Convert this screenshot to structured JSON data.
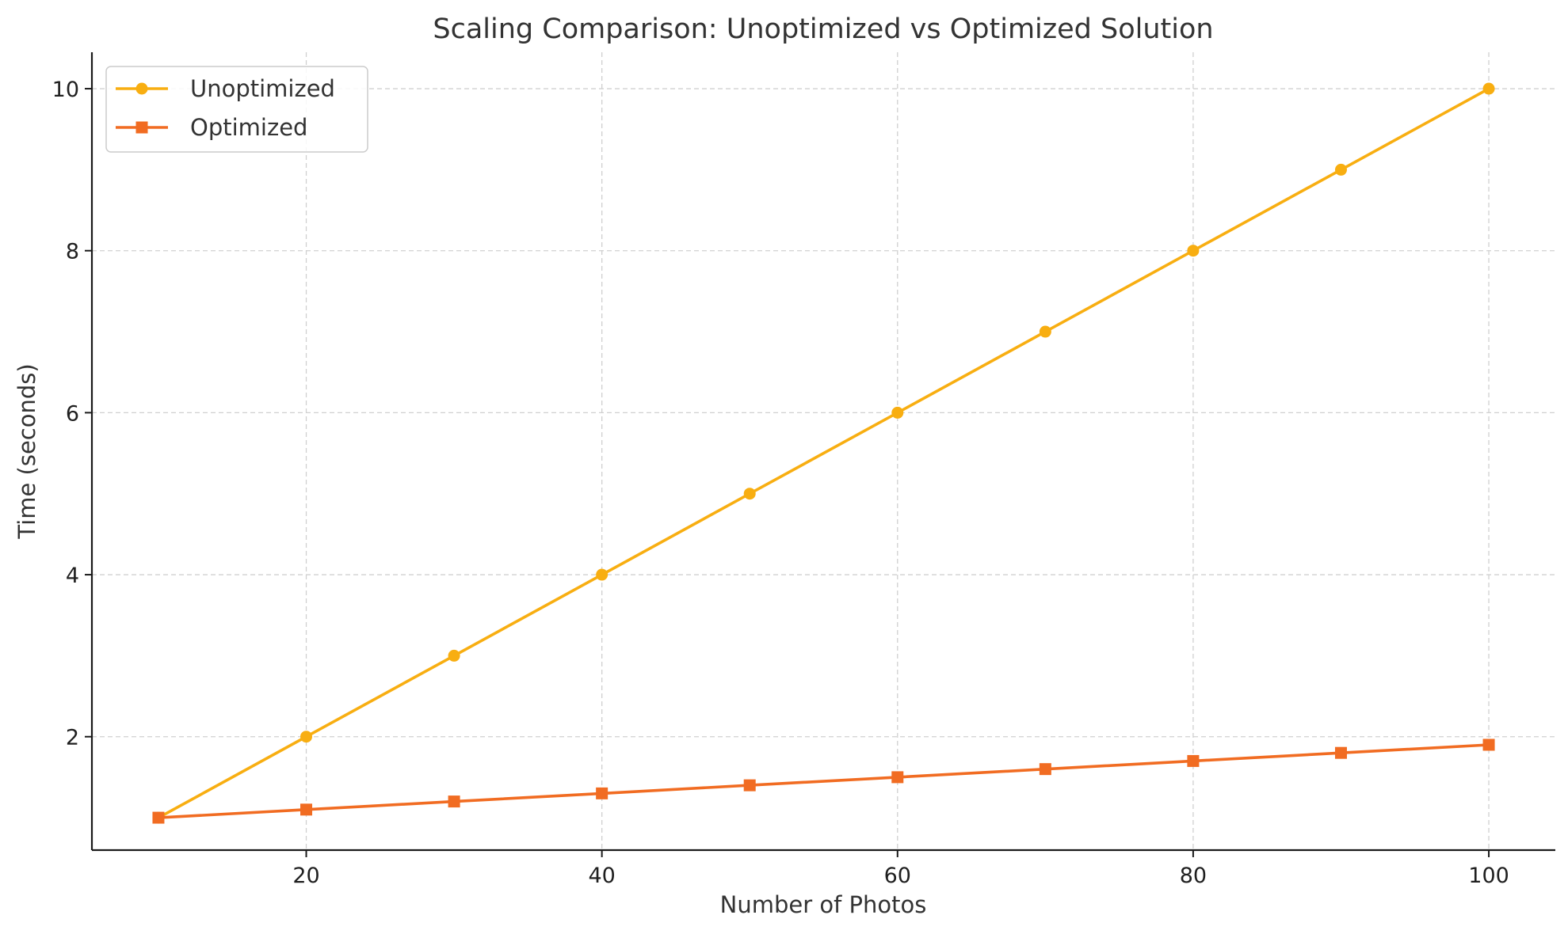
{
  "chart_data": {
    "type": "line",
    "title": "Scaling Comparison: Unoptimized vs Optimized Solution",
    "xlabel": "Number of Photos",
    "ylabel": "Time (seconds)",
    "x": [
      10,
      20,
      30,
      40,
      50,
      60,
      70,
      80,
      90,
      100
    ],
    "xlim": [
      5.5,
      104.5
    ],
    "ylim": [
      0.6,
      10.45
    ],
    "xticks": [
      20,
      40,
      60,
      80,
      100
    ],
    "yticks": [
      2,
      4,
      6,
      8,
      10
    ],
    "grid": true,
    "legend_position": "top-left",
    "series": [
      {
        "name": "Unoptimized",
        "values": [
          1,
          2,
          3,
          4,
          5,
          6,
          7,
          8,
          9,
          10
        ],
        "color": "#F8AE11",
        "marker": "circle"
      },
      {
        "name": "Optimized",
        "values": [
          1.0,
          1.1,
          1.2,
          1.3,
          1.4,
          1.5,
          1.6,
          1.7,
          1.8,
          1.9
        ],
        "color": "#F16C22",
        "marker": "square"
      }
    ]
  }
}
